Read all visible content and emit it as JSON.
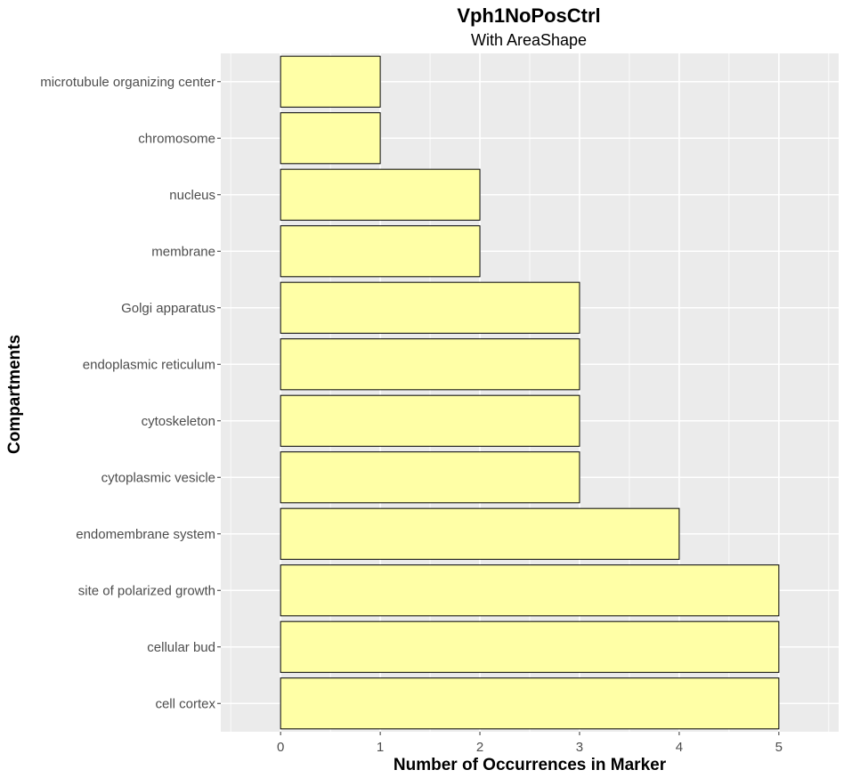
{
  "chart_data": {
    "type": "bar",
    "orientation": "horizontal",
    "title": "Vph1NoPosCtrl",
    "subtitle": "With AreaShape",
    "xlabel": "Number of Occurrences in Marker",
    "ylabel": "Compartments",
    "categories": [
      "microtubule organizing center",
      "chromosome",
      "nucleus",
      "membrane",
      "Golgi apparatus",
      "endoplasmic reticulum",
      "cytoskeleton",
      "cytoplasmic vesicle",
      "endomembrane system",
      "site of polarized growth",
      "cellular bud",
      "cell cortex"
    ],
    "values": [
      1,
      1,
      2,
      2,
      3,
      3,
      3,
      3,
      4,
      5,
      5,
      5
    ],
    "xlim": [
      -0.6,
      5.6
    ],
    "x_ticks": [
      "0",
      "1",
      "2",
      "3",
      "4",
      "5"
    ],
    "grid": true,
    "colors": {
      "bar_fill": "#FFFFA6",
      "bar_stroke": "#000000",
      "panel_background": "#EBEBEB",
      "grid": "#FFFFFF"
    }
  }
}
